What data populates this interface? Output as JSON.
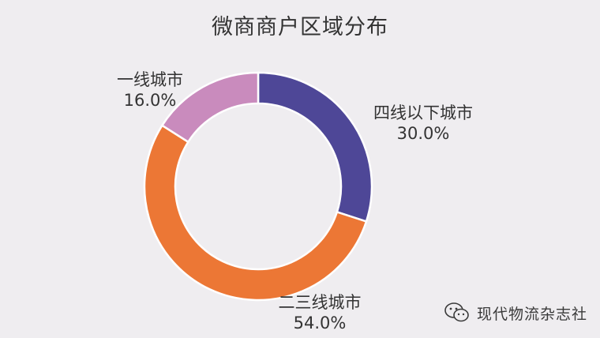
{
  "chart_data": {
    "type": "donut",
    "title": "微商商户区域分布",
    "slices": [
      {
        "label": "四线以下城市",
        "value": 30.0,
        "value_label": "30.0%",
        "color": "#4e4797"
      },
      {
        "label": "二三线城市",
        "value": 54.0,
        "value_label": "54.0%",
        "color": "#ec7735"
      },
      {
        "label": "一线城市",
        "value": 16.0,
        "value_label": "16.0%",
        "color": "#c98bbd"
      }
    ],
    "start": "12 o'clock, clockwise",
    "legend": "none"
  },
  "watermark": {
    "text": "现代物流杂志社",
    "icon": "wechat-icon"
  }
}
